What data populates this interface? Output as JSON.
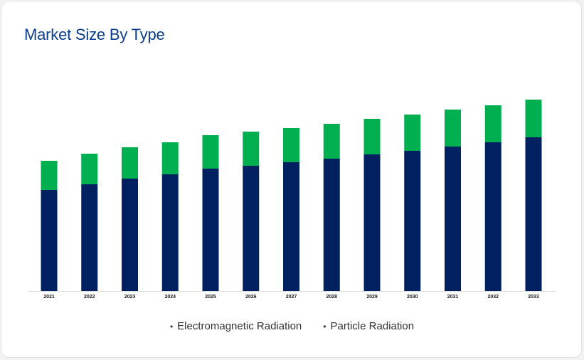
{
  "card": {
    "title": "Market Size By Type"
  },
  "colors": {
    "background": "#ffffff",
    "title": "#0a3d8f"
  },
  "chart_data": {
    "type": "bar",
    "stacked": true,
    "title": "Market Size By Type",
    "xlabel": "",
    "ylabel": "",
    "categories": [
      "2021",
      "2022",
      "2023",
      "2024",
      "2025",
      "2026",
      "2027",
      "2028",
      "2029",
      "2030",
      "2031",
      "2032",
      "2033"
    ],
    "series": [
      {
        "name": "Electromagnetic Radiation",
        "color": "#00205f",
        "values": [
          142,
          150,
          158,
          164,
          172,
          176,
          181,
          186,
          192,
          197,
          203,
          209,
          216
        ]
      },
      {
        "name": "Particle Radiation",
        "color": "#00b050",
        "values": [
          41,
          43,
          44,
          45,
          47,
          48,
          48,
          49,
          50,
          51,
          52,
          52,
          53
        ]
      }
    ],
    "ylim": [
      0,
      270
    ],
    "grid": false,
    "legend_position": "bottom"
  }
}
